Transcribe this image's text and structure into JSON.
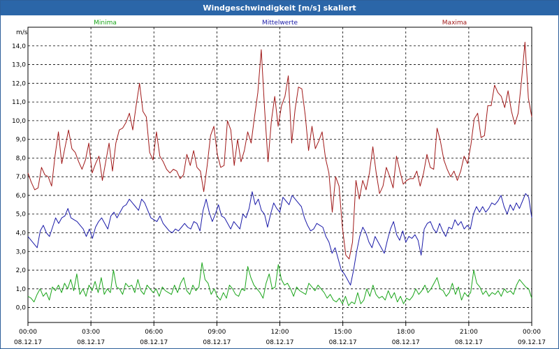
{
  "window": {
    "title": "Windgeschwindigkeit [m/s] skaliert"
  },
  "chart_data": {
    "type": "line",
    "title": "Windgeschwindigkeit [m/s] skaliert",
    "ylabel": "m/s",
    "ylim": [
      -0.8,
      15.0
    ],
    "xlim": [
      0,
      24
    ],
    "yticks": [
      0.0,
      1.0,
      2.0,
      3.0,
      4.0,
      5.0,
      6.0,
      7.0,
      8.0,
      9.0,
      10.0,
      11.0,
      12.0,
      13.0,
      14.0
    ],
    "ytick_labels": [
      "0,0",
      "1,0",
      "2,0",
      "3,0",
      "4,0",
      "5,0",
      "6,0",
      "7,0",
      "8,0",
      "9,0",
      "10,0",
      "11,0",
      "12,0",
      "13,0",
      "14,0"
    ],
    "xticks": [
      {
        "hour": 0,
        "time": "00:00",
        "date": "08.12.17"
      },
      {
        "hour": 3,
        "time": "03:00",
        "date": "08.12.17"
      },
      {
        "hour": 6,
        "time": "06:00",
        "date": "08.12.17"
      },
      {
        "hour": 9,
        "time": "09:00",
        "date": "08.12.17"
      },
      {
        "hour": 12,
        "time": "12:00",
        "date": "08.12.17"
      },
      {
        "hour": 15,
        "time": "15:00",
        "date": "08.12.17"
      },
      {
        "hour": 18,
        "time": "18:00",
        "date": "08.12.17"
      },
      {
        "hour": 21,
        "time": "21:00",
        "date": "08.12.17"
      },
      {
        "hour": 24,
        "time": "00:00",
        "date": "09.12.17"
      }
    ],
    "grid": true,
    "legend_position": "top",
    "series": [
      {
        "name": "Minima",
        "color": "#1aa51a",
        "y": [
          0.6,
          0.5,
          0.3,
          0.7,
          1.0,
          0.6,
          0.8,
          0.4,
          1.1,
          0.9,
          1.2,
          0.8,
          1.3,
          1.0,
          1.5,
          0.9,
          1.8,
          0.7,
          1.0,
          0.6,
          1.2,
          0.9,
          1.4,
          0.8,
          1.6,
          0.7,
          1.0,
          0.8,
          2.0,
          1.1,
          1.0,
          0.7,
          1.3,
          1.1,
          1.2,
          0.8,
          1.5,
          0.9,
          0.7,
          1.2,
          1.0,
          0.8,
          1.0,
          0.6,
          1.1,
          0.9,
          0.8,
          0.7,
          1.2,
          0.8,
          1.3,
          1.6,
          0.9,
          0.7,
          1.2,
          0.9,
          1.1,
          2.4,
          1.5,
          1.3,
          0.7,
          1.0,
          0.6,
          0.4,
          0.8,
          0.5,
          1.2,
          1.0,
          0.7,
          0.6,
          1.0,
          0.9,
          2.2,
          1.6,
          1.2,
          1.0,
          0.8,
          0.5,
          1.3,
          1.8,
          1.0,
          1.1,
          2.3,
          1.5,
          1.2,
          1.3,
          1.0,
          0.6,
          1.1,
          0.9,
          0.8,
          0.7,
          1.3,
          1.1,
          0.9,
          1.2,
          1.0,
          0.8,
          0.5,
          0.7,
          0.4,
          0.3,
          0.5,
          0.2,
          0.6,
          0.1,
          0.3,
          0.2,
          0.8,
          0.2,
          0.4,
          1.0,
          0.6,
          1.2,
          0.7,
          0.5,
          0.6,
          0.4,
          0.9,
          0.5,
          0.8,
          0.3,
          0.6,
          0.2,
          0.5,
          0.4,
          0.6,
          1.0,
          0.7,
          0.9,
          1.2,
          0.8,
          1.0,
          1.3,
          1.6,
          1.0,
          0.9,
          0.6,
          0.8,
          1.3,
          0.7,
          1.1,
          0.4,
          0.8,
          0.6,
          0.8,
          2.0,
          1.3,
          1.1,
          0.7,
          0.9,
          0.6,
          0.8,
          0.7,
          0.9,
          0.6,
          1.0,
          0.8,
          0.9,
          0.7,
          1.2,
          1.5,
          1.3,
          1.1,
          1.0,
          0.5
        ]
      },
      {
        "name": "Mittelwerte",
        "color": "#1a1aa8",
        "y": [
          3.8,
          3.6,
          3.4,
          3.2,
          4.1,
          4.4,
          4.0,
          3.8,
          4.3,
          4.8,
          4.5,
          4.8,
          4.9,
          5.3,
          4.8,
          4.7,
          4.6,
          4.4,
          4.2,
          3.8,
          4.2,
          3.7,
          4.3,
          4.6,
          4.8,
          4.5,
          4.2,
          4.9,
          5.1,
          4.8,
          5.1,
          5.4,
          5.5,
          5.8,
          5.6,
          5.4,
          5.2,
          5.8,
          5.6,
          5.2,
          4.8,
          4.7,
          4.6,
          4.9,
          4.5,
          4.3,
          4.1,
          4.0,
          4.2,
          4.1,
          4.3,
          4.5,
          4.3,
          4.2,
          4.6,
          4.5,
          4.1,
          5.2,
          5.8,
          5.1,
          4.6,
          5.0,
          5.5,
          4.9,
          4.8,
          4.5,
          4.2,
          4.6,
          4.4,
          4.2,
          5.0,
          4.8,
          5.3,
          6.2,
          5.5,
          5.8,
          5.2,
          5.0,
          4.3,
          5.0,
          5.6,
          5.3,
          5.1,
          5.9,
          5.7,
          5.5,
          6.0,
          5.8,
          5.6,
          5.4,
          4.8,
          4.4,
          4.1,
          4.2,
          4.5,
          4.4,
          4.3,
          3.8,
          3.5,
          2.9,
          3.2,
          2.6,
          2.0,
          1.8,
          1.5,
          1.2,
          2.0,
          3.0,
          3.8,
          4.3,
          4.0,
          3.5,
          3.2,
          3.8,
          3.5,
          3.2,
          2.9,
          3.6,
          4.2,
          4.6,
          3.9,
          3.6,
          4.1,
          3.5,
          3.8,
          3.7,
          3.9,
          3.6,
          2.8,
          4.2,
          4.5,
          4.6,
          4.2,
          4.0,
          4.5,
          4.1,
          3.8,
          4.3,
          4.2,
          4.7,
          4.4,
          4.6,
          4.2,
          4.4,
          4.2,
          5.0,
          5.4,
          5.1,
          5.4,
          5.1,
          5.3,
          5.6,
          5.5,
          5.7,
          6.0,
          5.4,
          5.0,
          5.5,
          5.2,
          5.6,
          5.3,
          5.7,
          6.1,
          5.9,
          4.8
        ]
      },
      {
        "name": "Maxima",
        "color": "#a01818",
        "y": [
          7.2,
          6.7,
          6.3,
          6.4,
          7.5,
          7.1,
          7.0,
          6.5,
          8.1,
          9.4,
          7.7,
          8.6,
          9.5,
          8.5,
          8.3,
          7.8,
          7.4,
          7.9,
          8.8,
          7.2,
          7.7,
          8.1,
          6.8,
          7.8,
          8.8,
          7.3,
          8.8,
          9.5,
          9.6,
          9.9,
          10.4,
          9.5,
          10.8,
          12.0,
          10.5,
          10.2,
          8.3,
          7.9,
          9.4,
          8.1,
          7.8,
          7.4,
          7.2,
          7.4,
          7.3,
          6.9,
          7.1,
          8.2,
          7.6,
          8.4,
          7.5,
          7.3,
          6.2,
          7.6,
          9.2,
          9.7,
          8.2,
          7.5,
          7.6,
          10.0,
          9.5,
          7.6,
          9.0,
          7.8,
          8.4,
          9.4,
          8.8,
          10.2,
          11.5,
          13.8,
          10.6,
          7.8,
          10.0,
          11.3,
          9.7,
          10.8,
          11.3,
          12.4,
          8.8,
          10.6,
          11.8,
          11.7,
          10.3,
          8.4,
          9.7,
          8.5,
          8.9,
          9.4,
          8.0,
          7.2,
          5.1,
          7.0,
          6.5,
          4.3,
          2.8,
          2.6,
          3.5,
          6.8,
          5.8,
          6.8,
          6.3,
          7.2,
          8.6,
          7.2,
          6.1,
          6.5,
          7.5,
          7.0,
          6.4,
          8.1,
          7.3,
          6.6,
          6.8,
          6.9,
          6.9,
          7.3,
          6.5,
          7.2,
          8.2,
          7.5,
          7.4,
          9.6,
          8.9,
          7.9,
          7.4,
          7.0,
          7.3,
          6.8,
          7.3,
          8.1,
          7.7,
          8.7,
          10.1,
          10.4,
          9.1,
          9.2,
          10.8,
          10.8,
          11.9,
          11.5,
          11.3,
          10.7,
          11.6,
          10.5,
          9.8,
          10.4,
          12.2,
          14.2,
          11.2,
          10.2
        ]
      }
    ]
  }
}
